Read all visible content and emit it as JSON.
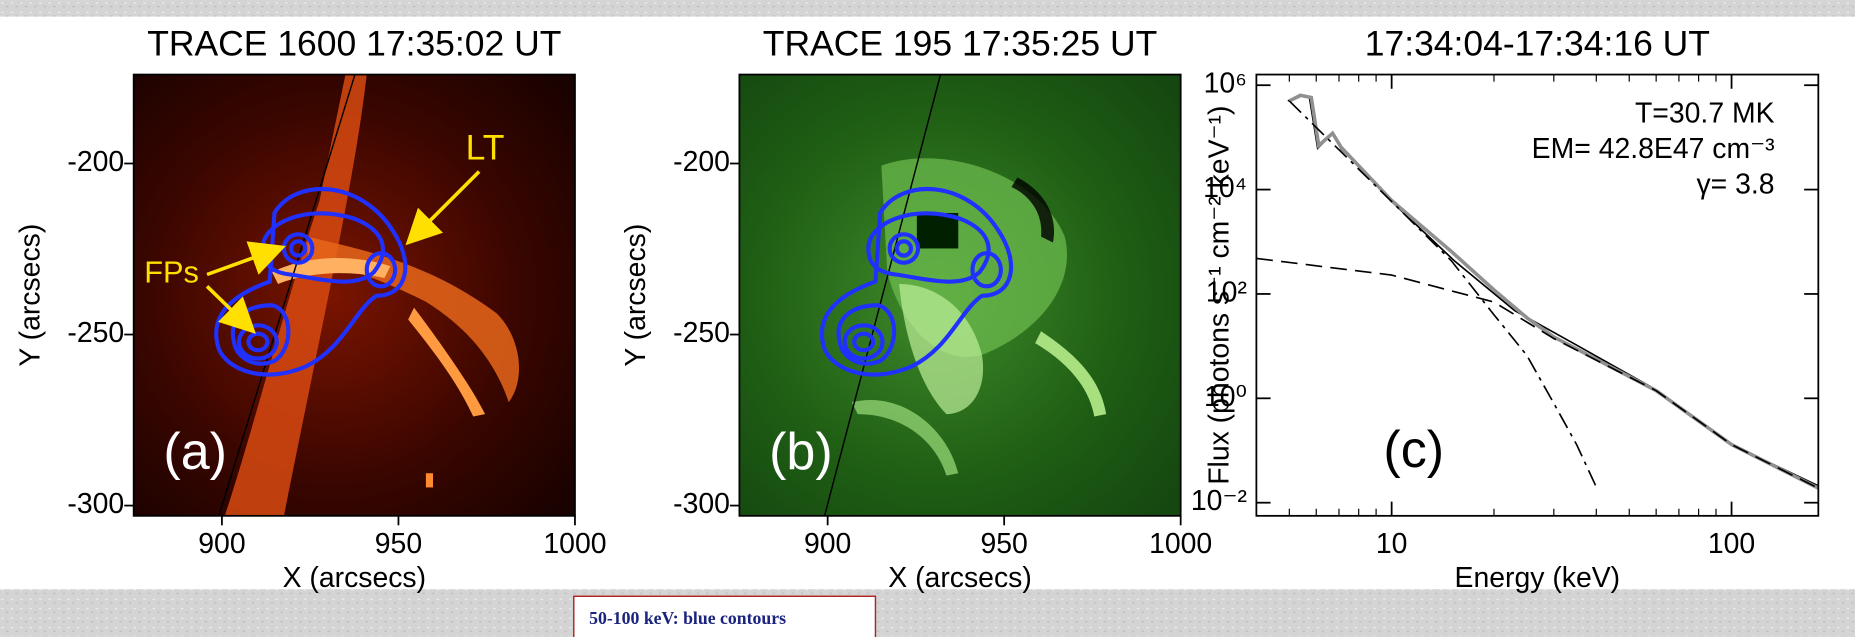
{
  "chart_data": [
    {
      "type": "image",
      "title": "TRACE 1600 17:35:02 UT",
      "x_label": "X (arcsecs)",
      "y_label": "Y (arcsecs)",
      "xlim": [
        875,
        1000
      ],
      "ylim": [
        -303,
        -174
      ],
      "xticks": [
        900,
        950,
        1000
      ],
      "yticks": [
        -200,
        -250,
        -300
      ],
      "colormap": "red",
      "annotations": [
        "(a)",
        "FPs",
        "LT"
      ]
    },
    {
      "type": "image",
      "title": "TRACE 195 17:35:25 UT",
      "x_label": "X (arcsecs)",
      "y_label": "Y (arcsecs)",
      "xlim": [
        875,
        1000
      ],
      "ylim": [
        -303,
        -174
      ],
      "xticks": [
        900,
        950,
        1000
      ],
      "yticks": [
        -200,
        -250,
        -300
      ],
      "colormap": "green",
      "annotations": [
        "(b)"
      ]
    },
    {
      "type": "line",
      "title": "17:34:04-17:34:16 UT",
      "x_label": "Energy (keV)",
      "y_label": "Flux (photons s⁻¹ cm⁻² keV⁻¹)",
      "log_x": true,
      "log_y": true,
      "xlim": [
        4,
        180
      ],
      "ylim": [
        0.0056,
        1600000
      ],
      "xticks": [
        10,
        100
      ],
      "yticks": [
        {
          "value": 1000000,
          "label": "10⁶"
        },
        {
          "value": 10000,
          "label": "10⁴"
        },
        {
          "value": 100,
          "label": "10²"
        },
        {
          "value": 1,
          "label": "10⁰"
        },
        {
          "value": 0.01,
          "label": "10⁻²"
        }
      ],
      "annotations": [
        "T=30.7 MK",
        "EM= 42.8E47 cm⁻³",
        "γ= 3.8",
        "(c)"
      ],
      "series": [
        {
          "color": "#000000",
          "style": "solid",
          "x": [
            4.95,
            5.37,
            5.73,
            6.06,
            6.3,
            6.7,
            7.1,
            8.0,
            10,
            15.3,
            23,
            34.5,
            60.6,
            100,
            183
          ],
          "values": [
            500000,
            660000,
            590000,
            62000,
            80000,
            120000,
            60000,
            28000,
            5900,
            430,
            48,
            11,
            1.4,
            0.13,
            0.02
          ]
        },
        {
          "color": "#909090",
          "style": "solid",
          "x": [
            5,
            5.4,
            5.8,
            6.1,
            6.7,
            7.1,
            10,
            15,
            20,
            25,
            30,
            60,
            100,
            180
          ],
          "values": [
            500000,
            640000,
            580000,
            70000,
            120000,
            65000,
            6200,
            650,
            120,
            35,
            15,
            1.4,
            0.13,
            0.019
          ]
        },
        {
          "color": "#000000",
          "style": "dashdot",
          "x": [
            5,
            10,
            15,
            20,
            25,
            30,
            35,
            40
          ],
          "values": [
            500000,
            5900,
            430,
            40,
            6.6,
            0.8,
            0.13,
            0.02
          ]
        },
        {
          "color": "#000000",
          "style": "dashed",
          "x": [
            4,
            10,
            20,
            30,
            60,
            100,
            180
          ],
          "values": [
            480,
            230,
            70,
            14,
            1.4,
            0.13,
            0.019
          ]
        }
      ]
    }
  ],
  "caption": "50-100 keV: blue contours"
}
